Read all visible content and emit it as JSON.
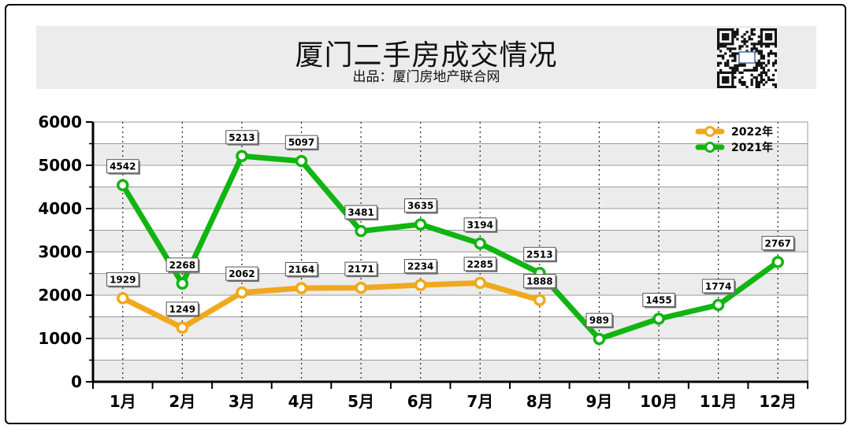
{
  "header": {
    "title": "厦门二手房成交情况",
    "subtitle": "出品：厦门房地产联合网"
  },
  "colors": {
    "series_2022": "#f0a91c",
    "series_2021": "#11b511",
    "band": "#ececec",
    "axis": "#000000"
  },
  "chart_data": {
    "type": "line",
    "categories": [
      "1月",
      "2月",
      "3月",
      "4月",
      "5月",
      "6月",
      "7月",
      "8月",
      "9月",
      "10月",
      "11月",
      "12月"
    ],
    "series": [
      {
        "name": "2022年",
        "values": [
          1929,
          1249,
          2062,
          2164,
          2171,
          2234,
          2285,
          1888,
          null,
          null,
          null,
          null
        ]
      },
      {
        "name": "2021年",
        "values": [
          4542,
          2268,
          5213,
          5097,
          3481,
          3635,
          3194,
          2513,
          989,
          1455,
          1774,
          2767
        ]
      }
    ],
    "yticks": [
      0,
      1000,
      2000,
      3000,
      4000,
      5000,
      6000
    ],
    "ylim": [
      0,
      6000
    ],
    "grid": true,
    "legend": "top-right"
  }
}
